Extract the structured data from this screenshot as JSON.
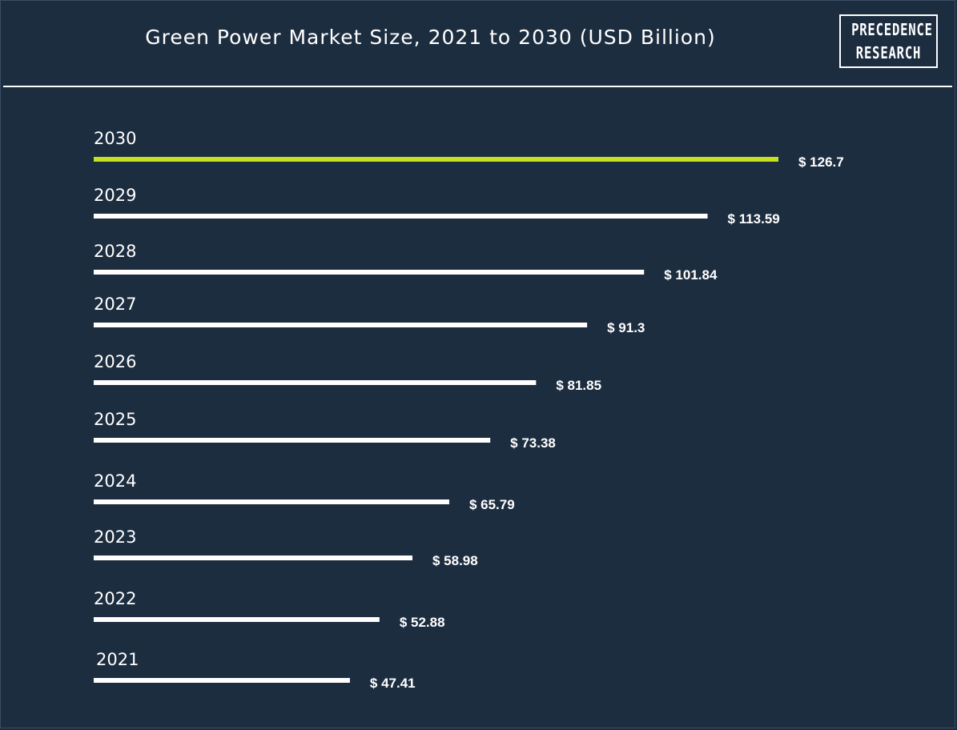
{
  "title": "Green Power Market Size, 2021 to 2030 (USD Billion)",
  "logo": {
    "line1": "PRECEDENCE",
    "line2": "RESEARCH"
  },
  "colors": {
    "background": "#1d2d40",
    "bar": "#ffffff",
    "highlight_bar": "#c5e01e",
    "text": "#ffffff"
  },
  "chart_data": {
    "type": "bar",
    "orientation": "horizontal",
    "categories": [
      "2030",
      "2029",
      "2028",
      "2027",
      "2026",
      "2025",
      "2024",
      "2023",
      "2022",
      "2021"
    ],
    "values": [
      126.7,
      113.59,
      101.84,
      91.3,
      81.85,
      73.38,
      65.79,
      58.98,
      52.88,
      47.41
    ],
    "value_labels": [
      "$ 126.7",
      "$ 113.59",
      "$ 101.84",
      "$ 91.3",
      "$ 81.85",
      "$ 73.38",
      "$ 65.79",
      "$ 58.98",
      "$ 52.88",
      "$ 47.41"
    ],
    "highlight_category": "2030",
    "title": "Green Power Market Size, 2021 to 2030 (USD Billion)",
    "grid": false
  }
}
